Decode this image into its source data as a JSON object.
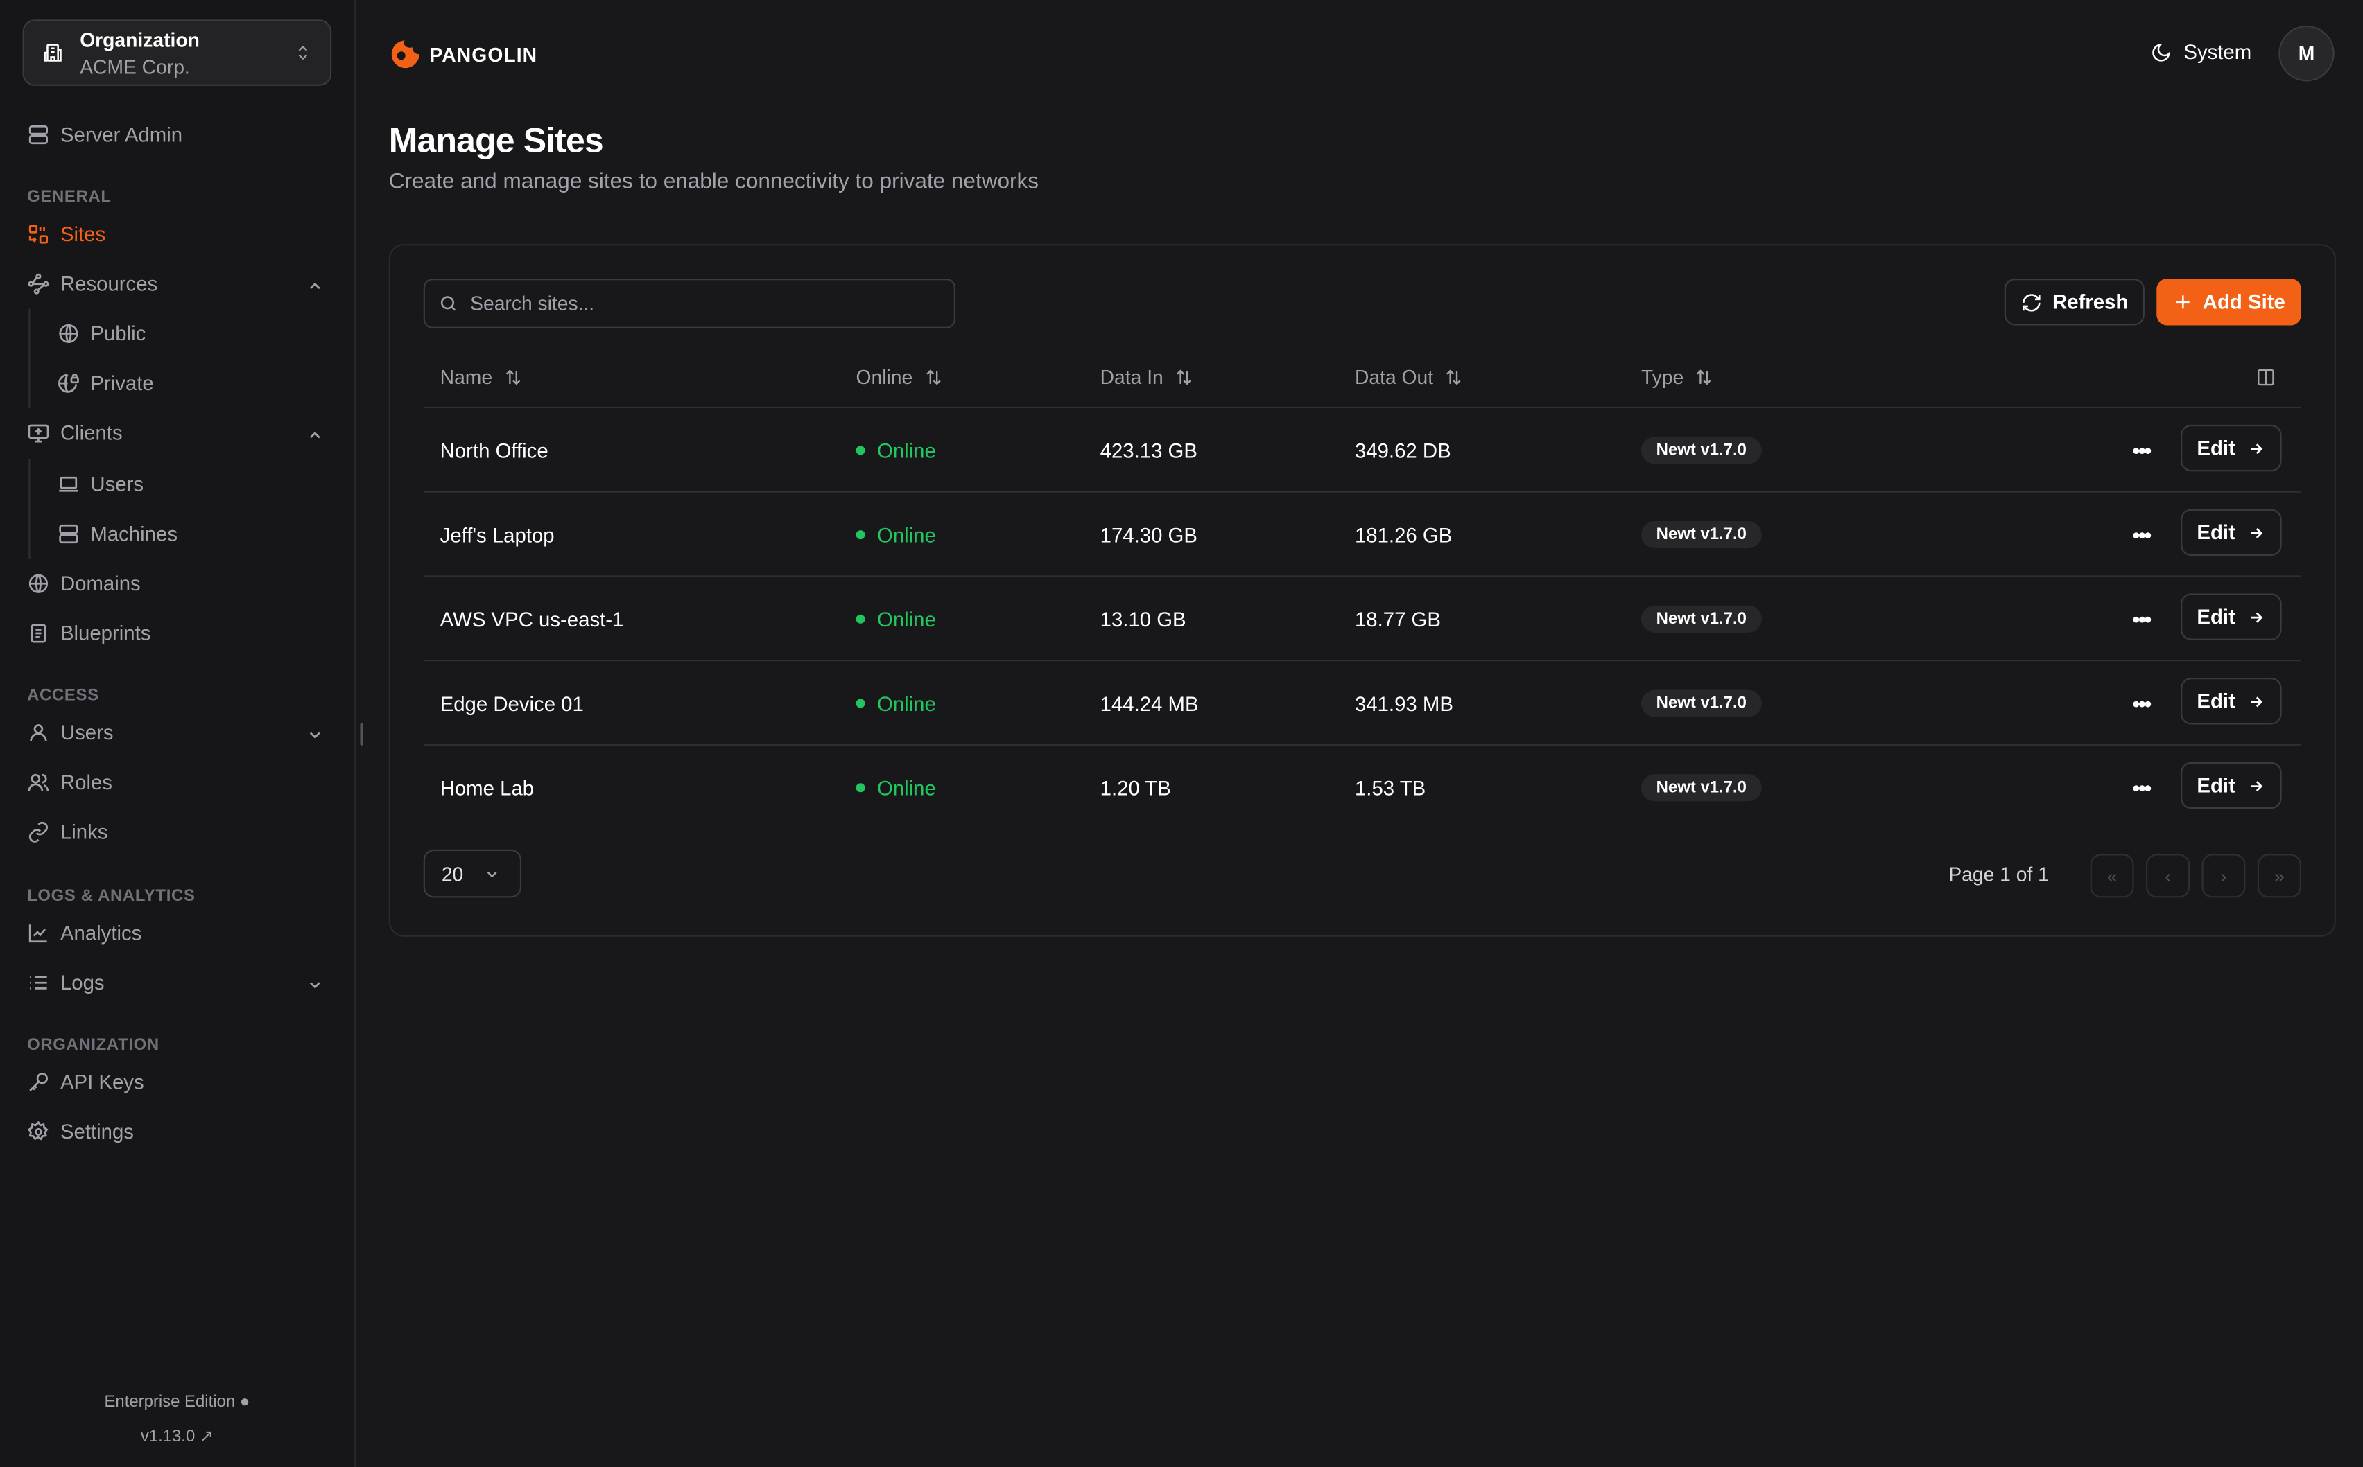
{
  "colors": {
    "accent": "#f36117",
    "online": "#22c55e",
    "background": "#18181b"
  },
  "org": {
    "label": "Organization",
    "name": "ACME Corp."
  },
  "sidebar": {
    "server_admin": "Server Admin",
    "sections": {
      "general": "GENERAL",
      "access": "ACCESS",
      "logs": "LOGS & ANALYTICS",
      "organization": "ORGANIZATION"
    },
    "items": {
      "sites": "Sites",
      "resources": "Resources",
      "public": "Public",
      "private": "Private",
      "clients": "Clients",
      "users": "Users",
      "machines": "Machines",
      "domains": "Domains",
      "blueprints": "Blueprints",
      "access_users": "Users",
      "roles": "Roles",
      "links": "Links",
      "analytics": "Analytics",
      "logs": "Logs",
      "api_keys": "API Keys",
      "settings": "Settings"
    },
    "edition": "Enterprise Edition",
    "version": "v1.13.0"
  },
  "header": {
    "brand": "PANGOLIN",
    "theme": "System",
    "avatar": "M"
  },
  "page": {
    "title": "Manage Sites",
    "subtitle": "Create and manage sites to enable connectivity to private networks"
  },
  "toolbar": {
    "search_placeholder": "Search sites...",
    "refresh": "Refresh",
    "add": "Add Site"
  },
  "table": {
    "columns": [
      "Name",
      "Online",
      "Data In",
      "Data Out",
      "Type"
    ],
    "rows": [
      {
        "name": "North Office",
        "status": "Online",
        "data_in": "423.13 GB",
        "data_out": "349.62 DB",
        "type": "Newt v1.7.0",
        "edit": "Edit"
      },
      {
        "name": "Jeff's Laptop",
        "status": "Online",
        "data_in": "174.30 GB",
        "data_out": "181.26 GB",
        "type": "Newt v1.7.0",
        "edit": "Edit"
      },
      {
        "name": "AWS VPC us-east-1",
        "status": "Online",
        "data_in": "13.10 GB",
        "data_out": "18.77 GB",
        "type": "Newt v1.7.0",
        "edit": "Edit"
      },
      {
        "name": "Edge Device 01",
        "status": "Online",
        "data_in": "144.24 MB",
        "data_out": "341.93 MB",
        "type": "Newt v1.7.0",
        "edit": "Edit"
      },
      {
        "name": "Home Lab",
        "status": "Online",
        "data_in": "1.20 TB",
        "data_out": "1.53 TB",
        "type": "Newt v1.7.0",
        "edit": "Edit"
      }
    ]
  },
  "pagination": {
    "page_size": "20",
    "info": "Page 1 of 1"
  }
}
